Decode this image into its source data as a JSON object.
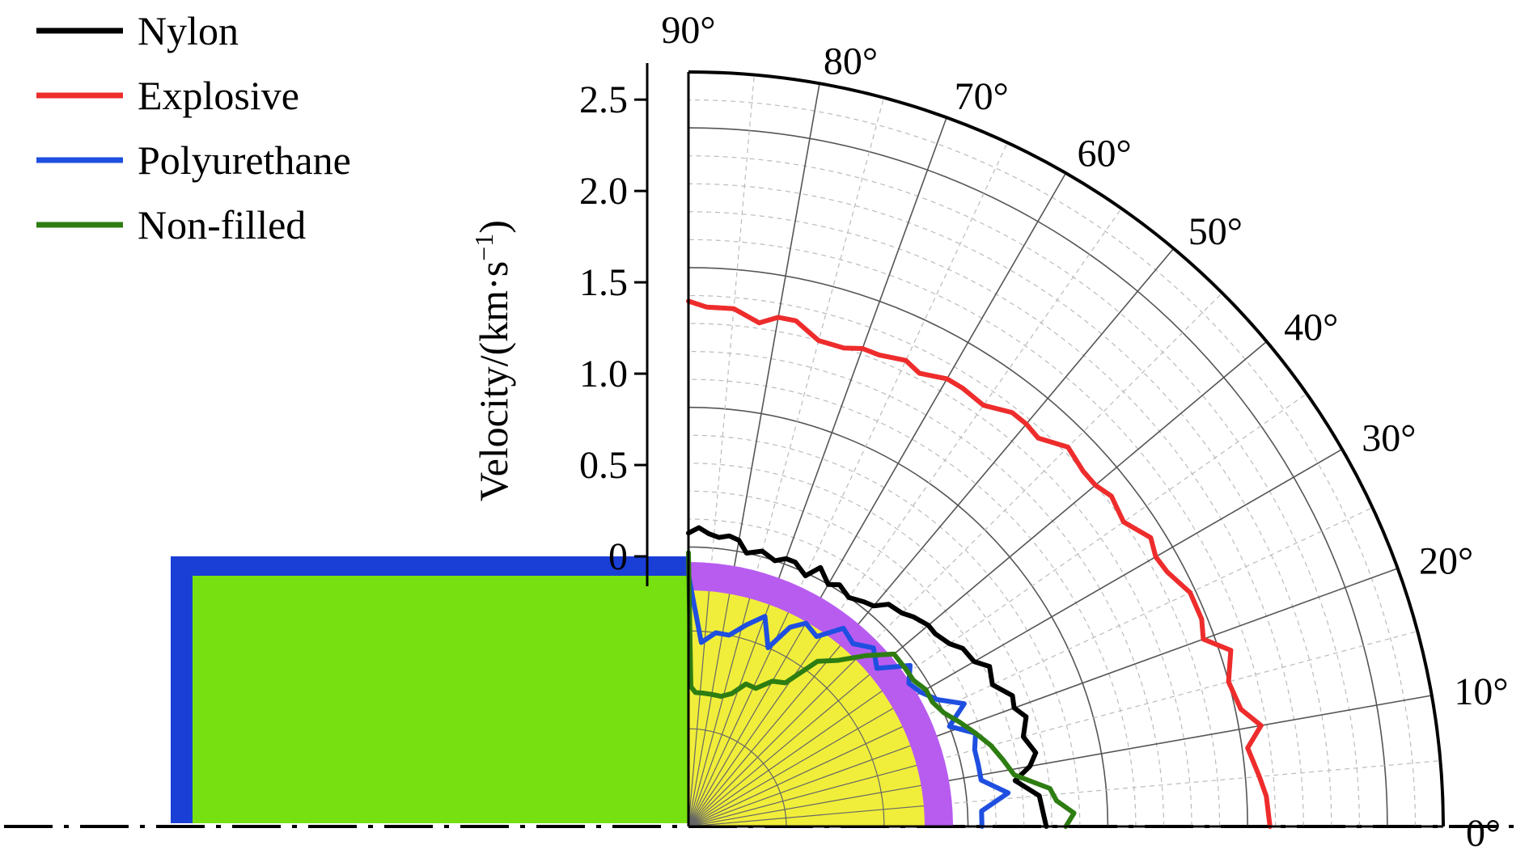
{
  "chart_data": {
    "type": "line",
    "subtype": "polar-quadrant",
    "title": "",
    "ylabel": "Velocity/(km·s",
    "ylabel_superscript": "−1",
    "ylabel_close": ")",
    "y_ticks": [
      "0",
      "0.5",
      "1.0",
      "1.5",
      "2.0",
      "2.5"
    ],
    "y_tick_values": [
      0,
      0.5,
      1.0,
      1.5,
      2.0,
      2.5
    ],
    "ylim": [
      0,
      2.7
    ],
    "theta_ticks": [
      "0°",
      "10°",
      "20°",
      "30°",
      "40°",
      "50°",
      "60°",
      "70°",
      "80°",
      "90°"
    ],
    "theta_tick_values": [
      0,
      10,
      20,
      30,
      40,
      50,
      60,
      70,
      80,
      90
    ],
    "theta_range_deg": [
      0,
      90
    ],
    "grid": true,
    "legend_position": "top-left",
    "colors": {
      "nylon": "#000000",
      "explosive": "#ee2c2c",
      "polyurethane": "#1f4fe0",
      "non_filled": "#2e7d12",
      "shell_outline": "#1a3fd6",
      "fill_region": "#77e010",
      "inner_core": "#f0ee3a",
      "casing_ring": "#b85cf0"
    },
    "series": [
      {
        "name": "Nylon",
        "color": "#000000",
        "theta": [
          0,
          5,
          8,
          10,
          12,
          15,
          18,
          20,
          22,
          25,
          28,
          30,
          33,
          35,
          38,
          40,
          43,
          45,
          48,
          50,
          52,
          55,
          58,
          60,
          63,
          65,
          68,
          70,
          72,
          75,
          78,
          80,
          82,
          84,
          86,
          88,
          90
        ],
        "r": [
          1.28,
          1.26,
          1.18,
          1.24,
          1.27,
          1.24,
          1.27,
          1.24,
          1.25,
          1.2,
          1.22,
          1.18,
          1.17,
          1.14,
          1.12,
          1.12,
          1.1,
          1.08,
          1.07,
          1.03,
          1.02,
          1.0,
          1.02,
          1.0,
          1.04,
          0.99,
          1.02,
          1.02,
          1.0,
          1.02,
          1.0,
          1.04,
          1.05,
          1.04,
          1.05,
          1.07,
          1.05
        ]
      },
      {
        "name": "Explosive",
        "color": "#ee2c2c",
        "theta": [
          0,
          3,
          5,
          8,
          10,
          12,
          15,
          18,
          20,
          22,
          25,
          28,
          30,
          32,
          35,
          38,
          40,
          42,
          45,
          48,
          50,
          52,
          55,
          58,
          60,
          63,
          65,
          68,
          70,
          72,
          75,
          78,
          80,
          82,
          85,
          88,
          90
        ],
        "r": [
          2.08,
          2.07,
          2.05,
          2.02,
          2.08,
          2.02,
          2.0,
          2.04,
          1.96,
          1.98,
          1.98,
          1.94,
          1.93,
          1.95,
          1.9,
          1.92,
          1.9,
          1.9,
          1.92,
          1.87,
          1.88,
          1.88,
          1.84,
          1.85,
          1.85,
          1.82,
          1.84,
          1.82,
          1.82,
          1.8,
          1.8,
          1.85,
          1.85,
          1.82,
          1.86,
          1.86,
          1.88
        ]
      },
      {
        "name": "Polyurethane",
        "color": "#1f4fe0",
        "theta": [
          0,
          3,
          6,
          9,
          12,
          15,
          18,
          21,
          24,
          27,
          30,
          33,
          36,
          40,
          44,
          48,
          52,
          56,
          60,
          63,
          66,
          70,
          74,
          78,
          82,
          86,
          90
        ],
        "r": [
          1.05,
          1.05,
          1.15,
          1.06,
          1.06,
          1.06,
          1.08,
          1.0,
          1.08,
          1.0,
          0.96,
          0.94,
          0.98,
          0.88,
          0.92,
          0.88,
          0.9,
          0.82,
          0.84,
          0.8,
          0.7,
          0.8,
          0.75,
          0.7,
          0.7,
          0.66,
          0.9
        ]
      },
      {
        "name": "Non-filled",
        "color": "#2e7d12",
        "theta": [
          0,
          2,
          4,
          6,
          9,
          12,
          15,
          18,
          21,
          24,
          27,
          30,
          33,
          36,
          40,
          44,
          48,
          52,
          56,
          60,
          64,
          68,
          72,
          76,
          80,
          84,
          87,
          89,
          90
        ],
        "r": [
          1.35,
          1.38,
          1.32,
          1.3,
          1.18,
          1.15,
          1.12,
          1.08,
          1.04,
          1.0,
          0.98,
          0.98,
          0.96,
          0.96,
          0.96,
          0.88,
          0.8,
          0.75,
          0.62,
          0.6,
          0.55,
          0.55,
          0.5,
          0.48,
          0.48,
          0.48,
          0.48,
          0.5,
          0.98
        ]
      }
    ]
  }
}
